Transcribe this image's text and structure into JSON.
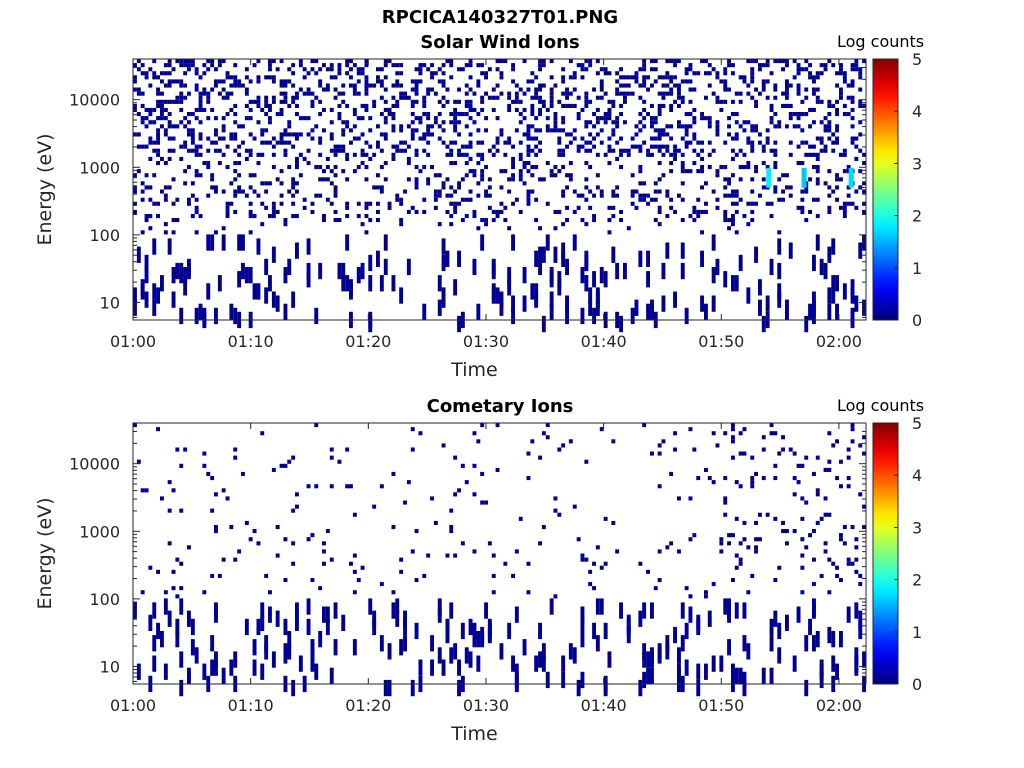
{
  "figure": {
    "title": "RPCICA140327T01.PNG"
  },
  "colorbar": {
    "label": "Log counts",
    "ticks": [
      "0",
      "1",
      "2",
      "3",
      "4",
      "5"
    ],
    "range": [
      0,
      5
    ]
  },
  "chart_data": [
    {
      "type": "heatmap",
      "title": "Solar Wind Ions",
      "xlabel": "Time",
      "ylabel": "Energy (eV)",
      "xticks": [
        "01:00",
        "01:10",
        "01:20",
        "01:30",
        "01:40",
        "01:50",
        "02:00"
      ],
      "xtick_minutes": [
        0,
        10,
        20,
        30,
        40,
        50,
        60
      ],
      "xlim_minutes": [
        0,
        62.3
      ],
      "yscale": "log",
      "yticks": [
        "10",
        "100",
        "1000",
        "10000"
      ],
      "ylim": [
        5.5,
        40000
      ],
      "colorbar_label": "Log counts",
      "clim": [
        0,
        5
      ],
      "background_value": "none (no counts)",
      "hotspots": [
        {
          "time": "01:54",
          "energy_eV": 700,
          "log_counts": 1.8
        },
        {
          "time": "01:57",
          "energy_eV": 700,
          "log_counts": 1.6
        },
        {
          "time": "02:01",
          "energy_eV": 700,
          "log_counts": 1.7
        }
      ],
      "typical_log_counts": 0.1,
      "seed": 7,
      "density_high": 0.3,
      "density_mid": 0.18,
      "density_low": 0.06
    },
    {
      "type": "heatmap",
      "title": "Cometary Ions",
      "xlabel": "Time",
      "ylabel": "Energy (eV)",
      "xticks": [
        "01:00",
        "01:10",
        "01:20",
        "01:30",
        "01:40",
        "01:50",
        "02:00"
      ],
      "xtick_minutes": [
        0,
        10,
        20,
        30,
        40,
        50,
        60
      ],
      "xlim_minutes": [
        0,
        62.3
      ],
      "yscale": "log",
      "yticks": [
        "10",
        "100",
        "1000",
        "10000"
      ],
      "ylim": [
        5.5,
        40000
      ],
      "colorbar_label": "Log counts",
      "clim": [
        0,
        5
      ],
      "background_value": "none (no counts)",
      "hotspots": [],
      "typical_log_counts": 0.1,
      "seed": 23,
      "density_high": 0.03,
      "density_mid": 0.035,
      "density_low": 0.05
    }
  ]
}
